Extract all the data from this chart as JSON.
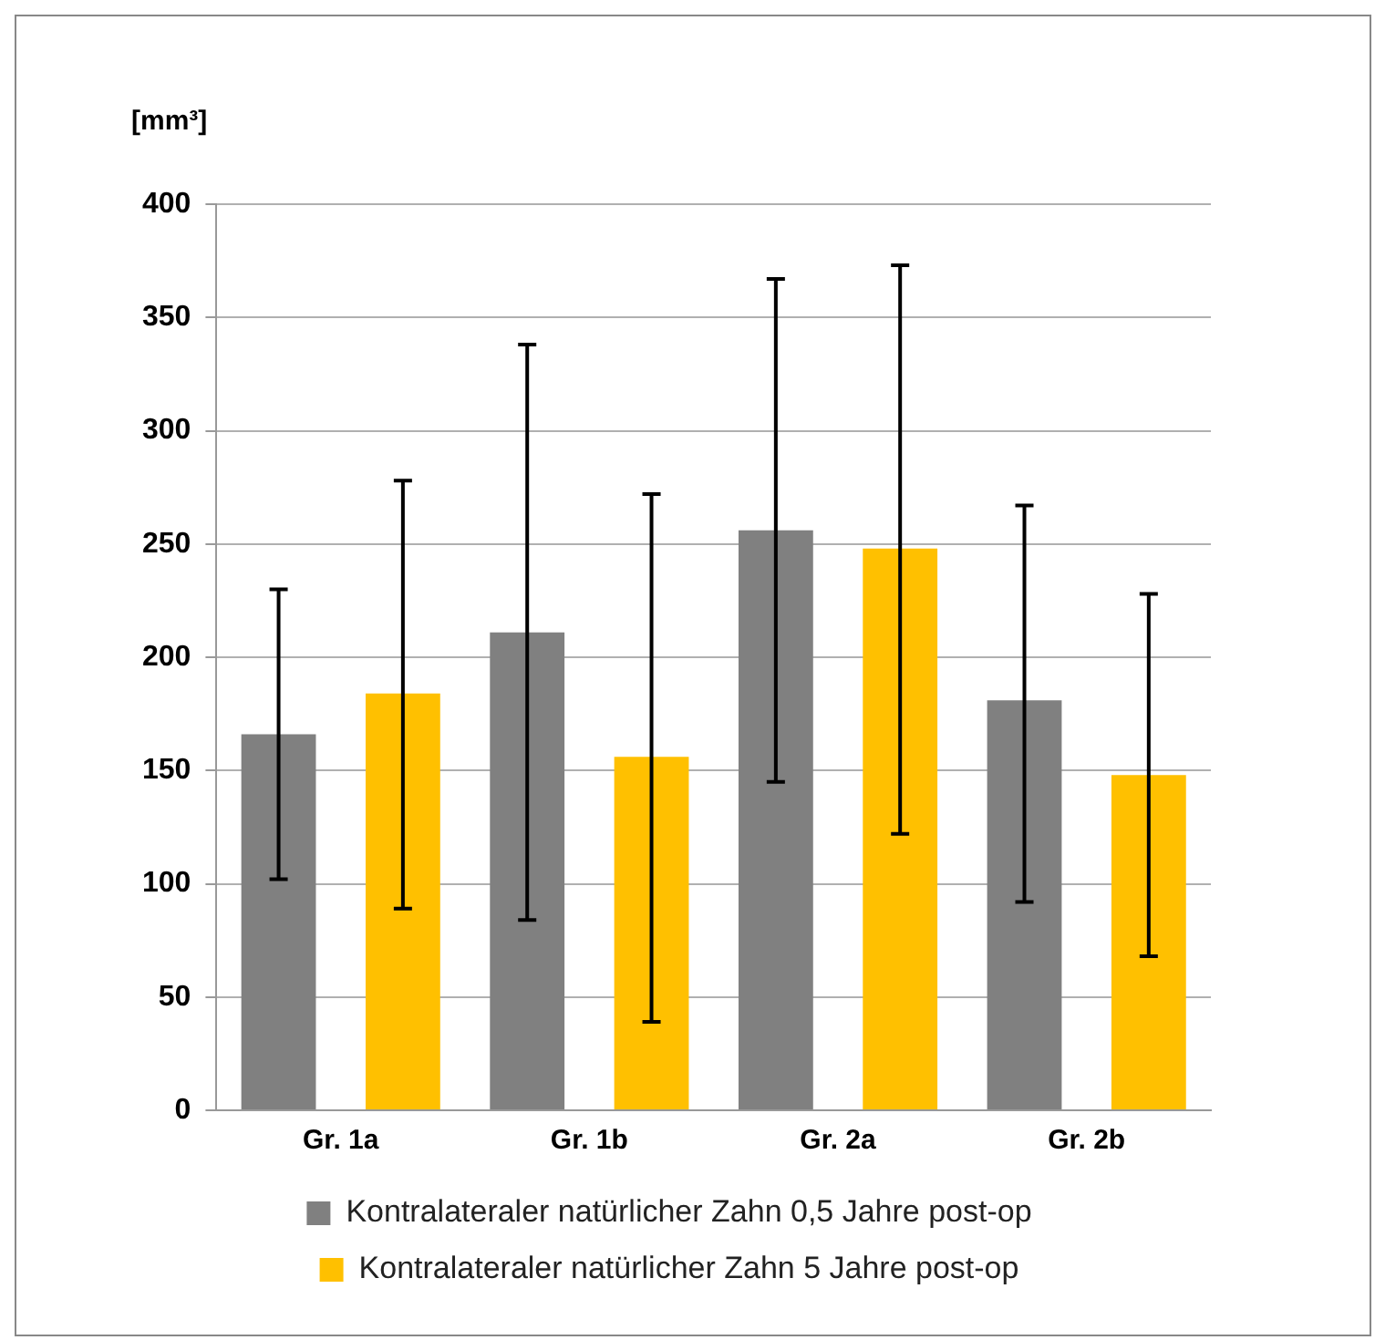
{
  "chart_data": {
    "type": "bar",
    "ylabel": "[mm³]",
    "categories": [
      "Gr. 1a",
      "Gr. 1b",
      "Gr. 2a",
      "Gr. 2b"
    ],
    "series": [
      {
        "name": "Kontralateraler natürlicher Zahn 0,5 Jahre post-op",
        "color": "#808080",
        "values": [
          166,
          211,
          256,
          181
        ],
        "errors": [
          [
            102,
            230
          ],
          [
            84,
            338
          ],
          [
            145,
            367
          ],
          [
            92,
            267
          ]
        ]
      },
      {
        "name": "Kontralateraler natürlicher Zahn 5 Jahre post-op",
        "color": "#ffc000",
        "values": [
          184,
          156,
          248,
          148
        ],
        "errors": [
          [
            89,
            278
          ],
          [
            39,
            272
          ],
          [
            122,
            373
          ],
          [
            68,
            228
          ]
        ]
      }
    ],
    "ylim": [
      0,
      400
    ],
    "yticks": [
      0,
      50,
      100,
      150,
      200,
      250,
      300,
      350,
      400
    ],
    "grid": "y",
    "legend": "bottom"
  }
}
